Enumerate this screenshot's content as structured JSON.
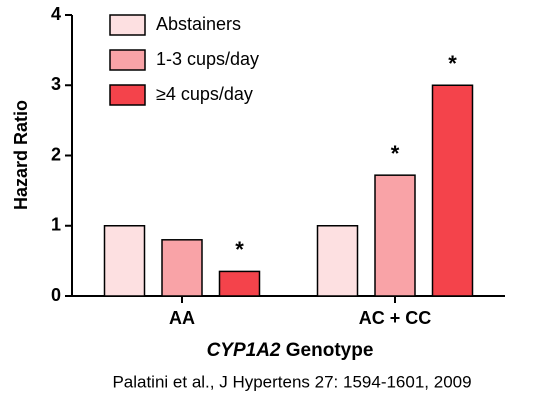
{
  "chart_data": {
    "type": "bar",
    "ylabel": "Hazard Ratio",
    "xlabel": {
      "gene": "CYP1A2",
      "text": "Genotype"
    },
    "source": "Palatini et al., J Hypertens 27: 1594-1601, 2009",
    "categories": [
      "AA",
      "AC + CC"
    ],
    "series": [
      {
        "name": "Abstainers",
        "color": "#fde0e1",
        "values": [
          1.0,
          1.0
        ],
        "annotations": [
          null,
          null
        ]
      },
      {
        "name": "1-3 cups/day",
        "color": "#f9a3a7",
        "values": [
          0.8,
          1.72
        ],
        "annotations": [
          null,
          "*"
        ]
      },
      {
        "name": "≥4 cups/day",
        "color": "#f4434b",
        "values": [
          0.35,
          3.0
        ],
        "annotations": [
          "*",
          "*"
        ]
      }
    ],
    "ylim": [
      0,
      4
    ],
    "yticks": [
      0,
      1,
      2,
      3,
      4
    ],
    "legend": "upper-left"
  }
}
